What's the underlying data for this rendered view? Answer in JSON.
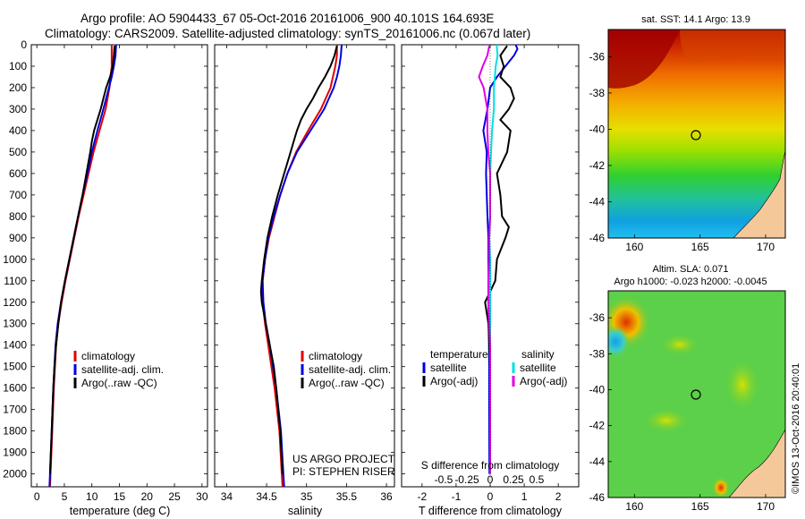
{
  "header": {
    "line1": "Argo profile: AO 5904433_67 05-Oct-2016 20161006_900 40.101S 164.693E",
    "line2": "Climatology: CARS2009. Satellite-adjusted climatology: synTS_20161006.nc (0.067d later)"
  },
  "colors": {
    "climatology": "#e00000",
    "satellite": "#0000e0",
    "argo": "#000000",
    "sat_salinity": "#00e0e0",
    "argo_salinity": "#e000e0",
    "land": "#f5c89a"
  },
  "chart_data": [
    {
      "type": "line",
      "panel": "temperature",
      "xlabel": "temperature (deg C)",
      "xlim": [
        -1,
        31
      ],
      "xticks": [
        0,
        5,
        10,
        15,
        20,
        25,
        30
      ],
      "ylim": [
        2060,
        0
      ],
      "yticks": [
        0,
        100,
        200,
        300,
        400,
        500,
        600,
        700,
        800,
        900,
        1000,
        1100,
        1200,
        1300,
        1400,
        1500,
        1600,
        1700,
        1800,
        1900,
        2000
      ],
      "legend": [
        "climatology",
        "satellite-adj. clim.",
        "Argo(..raw -QC)"
      ],
      "series": [
        {
          "name": "climatology",
          "color": "#e00000",
          "depth": [
            0,
            50,
            100,
            150,
            200,
            300,
            400,
            500,
            600,
            700,
            800,
            900,
            1000,
            1100,
            1200,
            1300,
            1400,
            1600,
            1800,
            2000,
            2060
          ],
          "values": [
            13.6,
            13.6,
            13.6,
            13.4,
            13.2,
            12.5,
            11.4,
            10.3,
            9.4,
            8.5,
            7.6,
            6.8,
            6.0,
            5.2,
            4.5,
            3.9,
            3.5,
            3.1,
            2.8,
            2.5,
            2.4
          ]
        },
        {
          "name": "satellite-adj. clim.",
          "color": "#0000e0",
          "depth": [
            0,
            50,
            100,
            150,
            200,
            300,
            400,
            500,
            600,
            700,
            800,
            900,
            1000,
            1100,
            1200,
            1300,
            1400,
            1600,
            1800,
            2000,
            2060
          ],
          "values": [
            14.4,
            14.3,
            14.0,
            13.6,
            13.1,
            12.1,
            11.0,
            10.0,
            9.2,
            8.3,
            7.5,
            6.7,
            5.9,
            5.1,
            4.4,
            3.8,
            3.4,
            3.0,
            2.7,
            2.4,
            2.3
          ]
        },
        {
          "name": "Argo(..raw -QC)",
          "color": "#000000",
          "depth": [
            5,
            50,
            100,
            150,
            200,
            250,
            300,
            350,
            400,
            450,
            500,
            600,
            700,
            800,
            900,
            1000,
            1100,
            1200,
            1300,
            1400,
            1500,
            1600,
            1800,
            2000
          ],
          "values": [
            14.1,
            14.0,
            13.8,
            13.3,
            12.6,
            12.1,
            11.6,
            11.0,
            10.4,
            10.0,
            9.7,
            9.0,
            8.3,
            7.5,
            6.7,
            5.9,
            5.1,
            4.4,
            3.9,
            3.5,
            3.2,
            3.0,
            2.7,
            2.4
          ]
        }
      ]
    },
    {
      "type": "line",
      "panel": "salinity",
      "xlabel": "salinity",
      "xlim": [
        33.85,
        36.1
      ],
      "xticks": [
        34,
        34.5,
        35,
        35.5,
        36
      ],
      "ylim": [
        2060,
        0
      ],
      "legend": [
        "climatology",
        "satellite-adj. clim.",
        "Argo(..raw -QC)"
      ],
      "annotation": [
        "US ARGO PROJECT",
        "PI: STEPHEN RISER"
      ],
      "series": [
        {
          "name": "climatology",
          "color": "#e00000",
          "depth": [
            0,
            50,
            100,
            150,
            200,
            300,
            400,
            500,
            600,
            700,
            800,
            900,
            1000,
            1100,
            1200,
            1300,
            1400,
            1600,
            1800,
            2000,
            2060
          ],
          "values": [
            35.38,
            35.38,
            35.36,
            35.33,
            35.3,
            35.18,
            35.02,
            34.87,
            34.76,
            34.67,
            34.6,
            34.53,
            34.48,
            34.45,
            34.45,
            34.48,
            34.52,
            34.6,
            34.66,
            34.69,
            34.7
          ]
        },
        {
          "name": "satellite-adj. clim.",
          "color": "#0000e0",
          "depth": [
            0,
            50,
            100,
            150,
            200,
            300,
            400,
            500,
            600,
            700,
            800,
            900,
            1000,
            1100,
            1200,
            1300,
            1400,
            1600,
            1800,
            2000,
            2060
          ],
          "values": [
            35.44,
            35.43,
            35.41,
            35.38,
            35.34,
            35.22,
            35.05,
            34.88,
            34.76,
            34.67,
            34.59,
            34.52,
            34.48,
            34.45,
            34.46,
            34.49,
            34.54,
            34.62,
            34.68,
            34.71,
            34.72
          ]
        },
        {
          "name": "Argo(..raw -QC)",
          "color": "#000000",
          "depth": [
            5,
            50,
            100,
            150,
            200,
            250,
            300,
            350,
            400,
            450,
            500,
            600,
            700,
            800,
            900,
            1000,
            1100,
            1150,
            1200,
            1300,
            1400,
            1500,
            1600,
            1800,
            2000
          ],
          "values": [
            35.38,
            35.35,
            35.3,
            35.23,
            35.15,
            35.08,
            35.0,
            34.93,
            34.88,
            34.84,
            34.8,
            34.72,
            34.64,
            34.57,
            34.51,
            34.47,
            34.44,
            34.43,
            34.44,
            34.49,
            34.54,
            34.59,
            34.62,
            34.67,
            34.7
          ]
        }
      ]
    },
    {
      "type": "line",
      "panel": "difference",
      "xlabel": "T difference from climatology",
      "xlabel_top": "S difference from climatology",
      "xlim": [
        -2.6,
        2.6
      ],
      "xticks": [
        -2,
        -1,
        0,
        1,
        2
      ],
      "sticks": [
        -0.5,
        -0.25,
        0,
        0.25,
        0.5
      ],
      "legend_titles": [
        "temperature",
        "salinity"
      ],
      "legend": [
        "satellite",
        "Argo(-adj)",
        "satellite",
        "Argo(-adj)"
      ],
      "series": [
        {
          "name": "satellite",
          "color": "#0000e0",
          "depth": [
            0,
            20,
            50,
            100,
            150,
            200,
            300,
            400,
            500,
            600,
            700,
            800,
            900,
            1000,
            1100,
            1200,
            1300,
            1500,
            1700,
            2000
          ],
          "values": [
            0.75,
            0.8,
            0.7,
            0.45,
            0.2,
            0.0,
            -0.08,
            -0.2,
            -0.1,
            -0.12,
            -0.1,
            -0.08,
            -0.05,
            -0.05,
            -0.05,
            -0.05,
            -0.04,
            -0.03,
            -0.03,
            -0.02
          ]
        },
        {
          "name": "Argo(-adj)",
          "color": "#000000",
          "depth": [
            5,
            50,
            100,
            150,
            200,
            250,
            300,
            350,
            400,
            500,
            600,
            700,
            800,
            850,
            900,
            1000,
            1100,
            1200,
            1300,
            1500,
            1700,
            2000
          ],
          "values": [
            0.5,
            0.3,
            0.4,
            0.3,
            0.6,
            0.7,
            0.55,
            0.3,
            0.6,
            0.5,
            0.2,
            0.3,
            0.35,
            0.55,
            0.45,
            0.2,
            0.15,
            -0.15,
            -0.05,
            0.0,
            0.0,
            0.0
          ]
        },
        {
          "name": "satellite",
          "color": "#00e0e0",
          "depth": [
            0,
            50,
            100,
            150,
            200,
            300,
            400,
            500,
            600,
            700,
            800,
            900,
            1000,
            1100,
            1200,
            1300,
            1500,
            1700,
            2000
          ],
          "values": [
            0.07,
            0.08,
            0.06,
            0.05,
            0.04,
            0.04,
            0.02,
            0.01,
            0.0,
            0.0,
            0.0,
            -0.01,
            0.0,
            0.0,
            0.0,
            0.0,
            0.0,
            0.0,
            0.0
          ]
        },
        {
          "name": "Argo(-adj)",
          "color": "#e000e0",
          "depth": [
            5,
            50,
            100,
            150,
            200,
            300,
            400,
            500,
            600,
            700,
            800,
            900,
            1000,
            1100,
            1200,
            1300,
            1400,
            1500,
            1700,
            2000
          ],
          "values": [
            -0.01,
            -0.03,
            -0.08,
            -0.12,
            -0.07,
            -0.03,
            -0.03,
            -0.02,
            0.0,
            0.0,
            0.0,
            -0.01,
            -0.01,
            -0.02,
            -0.02,
            -0.01,
            0.0,
            0.0,
            0.0,
            0.0
          ]
        }
      ]
    },
    {
      "type": "heatmap",
      "panel": "sst-map",
      "title": "sat. SST: 14.1  Argo: 13.9",
      "xticks": [
        160,
        165,
        170
      ],
      "yticks": [
        -36,
        -38,
        -40,
        -42,
        -44,
        -46
      ],
      "xlim": [
        158,
        171.5
      ],
      "ylim": [
        -46,
        -34.5
      ],
      "marker": {
        "lon": 164.693,
        "lat": -40.101
      }
    },
    {
      "type": "heatmap",
      "panel": "sla-map",
      "title": "Altim. SLA: 0.071",
      "subtitle": "Argo h1000: -0.023 h2000: -0.0045",
      "xticks": [
        160,
        165,
        170
      ],
      "yticks": [
        -36,
        -38,
        -40,
        -42,
        -44,
        -46
      ],
      "xlim": [
        158,
        171.5
      ],
      "ylim": [
        -46,
        -34.5
      ],
      "marker": {
        "lon": 164.693,
        "lat": -40.101
      }
    }
  ],
  "watermark": "©IMOS 13-Oct-2016 20:40:01"
}
